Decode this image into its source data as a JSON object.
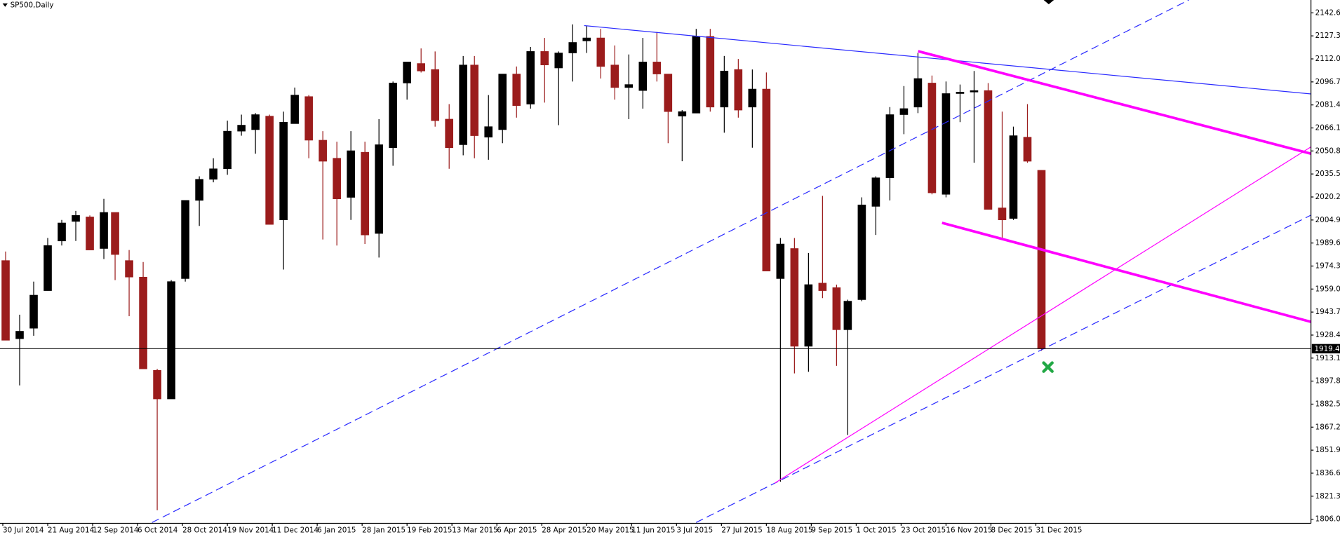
{
  "chart_data": {
    "type": "candlestick",
    "title": "SP500,Daily",
    "x": [
      1,
      6,
      11,
      16,
      21,
      26,
      31,
      36,
      40,
      45,
      50,
      55,
      60,
      65,
      70,
      75,
      80,
      85,
      90,
      95,
      100,
      104,
      109,
      114,
      119,
      124,
      129,
      134,
      139,
      144,
      149,
      154,
      159,
      164,
      168,
      173,
      178,
      183,
      188,
      193,
      198,
      203,
      208,
      213,
      218,
      223,
      228,
      233,
      237,
      242,
      247,
      252,
      257,
      262,
      267,
      272,
      277,
      282,
      287,
      292,
      297,
      301,
      306,
      311,
      316,
      321,
      326,
      331,
      336,
      341,
      346,
      351,
      356,
      360,
      365,
      370
    ],
    "open": [
      1978,
      1926,
      1933,
      1958,
      1991,
      2004,
      2007,
      1986,
      2010,
      1978,
      1967,
      1905,
      1886,
      1966,
      2018,
      2032,
      2039,
      2064,
      2065,
      2074,
      2005,
      2069,
      2087,
      2058,
      2046,
      2020,
      2050,
      1996,
      2053,
      2096,
      2109,
      2105,
      2072,
      2055,
      2108,
      2060,
      2065,
      2102,
      2082,
      2117,
      2106,
      2116,
      2124,
      2126,
      2108,
      2093,
      2091,
      2110,
      2102,
      2074,
      2076,
      2127,
      2080,
      2105,
      2080,
      2092,
      1966,
      1986,
      1921,
      1963,
      1960,
      1932,
      1952,
      2014,
      2033,
      2075,
      2080,
      2096,
      2022,
      2089,
      2090,
      2091,
      2013,
      2006,
      2060,
      2038
    ],
    "high": [
      1984,
      1942,
      1964,
      1993,
      2005,
      2011,
      2008,
      2019,
      2010,
      1985,
      1977,
      1906,
      1965,
      2018,
      2034,
      2046,
      2071,
      2075,
      2076,
      2075,
      2077,
      2093,
      2088,
      2064,
      2057,
      2064,
      2057,
      2072,
      2097,
      2110,
      2119,
      2117,
      2082,
      2114,
      2114,
      2088,
      2102,
      2107,
      2120,
      2126,
      2117,
      2135,
      2134,
      2132,
      2121,
      2115,
      2126,
      2130,
      2102,
      2078,
      2132,
      2132,
      2114,
      2112,
      2105,
      2103,
      1993,
      1993,
      1983,
      2021,
      1962,
      1952,
      2020,
      2034,
      2080,
      2094,
      2116,
      2101,
      2097,
      2095,
      2104,
      2096,
      2077,
      2067,
      2082,
      2038
    ],
    "low": [
      1925,
      1895,
      1928,
      1958,
      1988,
      1991,
      1985,
      1979,
      1965,
      1941,
      1906,
      1812,
      1886,
      1964,
      2001,
      2030,
      2035,
      2061,
      2049,
      2002,
      1972,
      2069,
      2046,
      1992,
      1988,
      2005,
      1989,
      1980,
      2041,
      2085,
      2103,
      2067,
      2039,
      2048,
      2046,
      2045,
      2056,
      2073,
      2079,
      2083,
      2068,
      2097,
      2116,
      2099,
      2085,
      2072,
      2079,
      2097,
      2056,
      2044,
      2076,
      2077,
      2063,
      2073,
      2053,
      1971,
      1831,
      1903,
      1904,
      1953,
      1908,
      1862,
      1951,
      1995,
      2018,
      2062,
      2076,
      2022,
      2020,
      2070,
      2043,
      2012,
      1993,
      2005,
      2043,
      1918
    ],
    "close": [
      1925,
      1931,
      1955,
      1988,
      2003,
      2008,
      1985,
      2010,
      1982,
      1967,
      1906,
      1886,
      1964,
      2018,
      2032,
      2039,
      2064,
      2068,
      2075,
      2002,
      2070,
      2088,
      2058,
      2044,
      2019,
      2051,
      1995,
      2055,
      2096,
      2110,
      2104,
      2071,
      2053,
      2108,
      2061,
      2067,
      2102,
      2081,
      2117,
      2108,
      2116,
      2123,
      2126,
      2107,
      2093,
      2095,
      2110,
      2102,
      2077,
      2077,
      2127,
      2080,
      2104,
      2078,
      2092,
      1971,
      1989,
      1921,
      1962,
      1958,
      1932,
      1951,
      2015,
      2033,
      2075,
      2079,
      2099,
      2023,
      2089,
      2090,
      2091,
      2012,
      2005,
      2061,
      2044,
      1919.4
    ],
    "up_color": "#000000",
    "down_color": "#9b1c1c",
    "xlim": [
      -1,
      466
    ],
    "xticks": [
      {
        "value": 0,
        "label": "30 Jul 2014"
      },
      {
        "value": 16,
        "label": "21 Aug 2014"
      },
      {
        "value": 32,
        "label": "12 Sep 2014"
      },
      {
        "value": 48,
        "label": "6 Oct 2014"
      },
      {
        "value": 64,
        "label": "28 Oct 2014"
      },
      {
        "value": 80,
        "label": "19 Nov 2014"
      },
      {
        "value": 96,
        "label": "11 Dec 2014"
      },
      {
        "value": 112,
        "label": "6 Jan 2015"
      },
      {
        "value": 128,
        "label": "28 Jan 2015"
      },
      {
        "value": 144,
        "label": "19 Feb 2015"
      },
      {
        "value": 160,
        "label": "13 Mar 2015"
      },
      {
        "value": 176,
        "label": "6 Apr 2015"
      },
      {
        "value": 192,
        "label": "28 Apr 2015"
      },
      {
        "value": 208,
        "label": "20 May 2015"
      },
      {
        "value": 224,
        "label": "11 Jun 2015"
      },
      {
        "value": 240,
        "label": "3 Jul 2015"
      },
      {
        "value": 256,
        "label": "27 Jul 2015"
      },
      {
        "value": 272,
        "label": "18 Aug 2015"
      },
      {
        "value": 288,
        "label": "9 Sep 2015"
      },
      {
        "value": 304,
        "label": "1 Oct 2015"
      },
      {
        "value": 320,
        "label": "23 Oct 2015"
      },
      {
        "value": 336,
        "label": "16 Nov 2015"
      },
      {
        "value": 352,
        "label": "8 Dec 2015"
      },
      {
        "value": 368,
        "label": "31 Dec 2015"
      }
    ],
    "ylim": [
      1803.3,
      2151.2
    ],
    "yticks": [
      2142.65,
      2127.35,
      2112.05,
      2096.75,
      2081.45,
      2066.15,
      2050.85,
      2035.55,
      2020.25,
      2004.95,
      1989.65,
      1974.35,
      1959.05,
      1943.75,
      1928.45,
      1913.15,
      1897.85,
      1882.55,
      1867.25,
      1851.95,
      1836.65,
      1821.35,
      1806.05
    ],
    "last_price": {
      "value": 1919.4,
      "label": "1919.40"
    },
    "grid": false
  }
}
